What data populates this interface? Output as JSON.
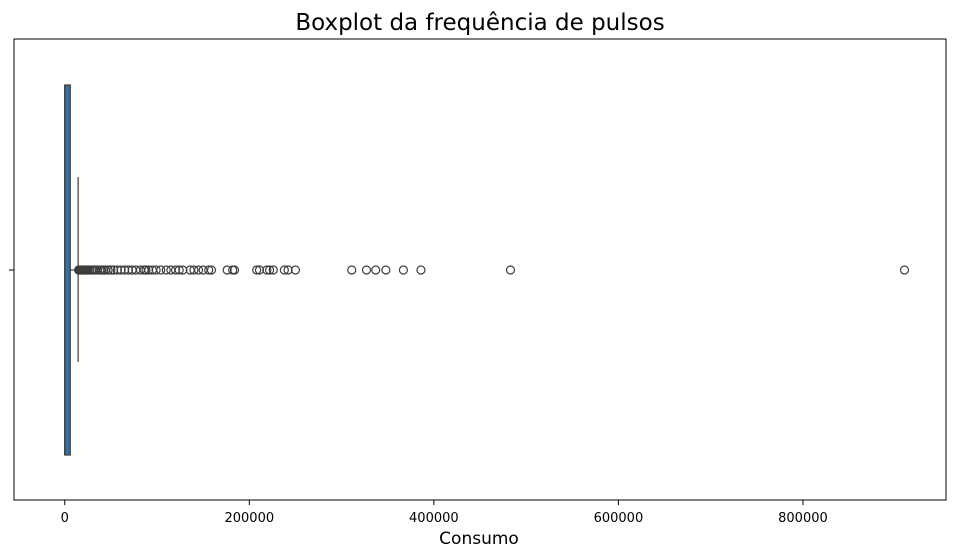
{
  "chart_data": {
    "type": "boxplot",
    "title": "Boxplot da frequência de pulsos",
    "xlabel": "Consumo",
    "ylabel": "",
    "xlim": [
      -55000,
      955000
    ],
    "xticks": [
      0,
      200000,
      400000,
      600000,
      800000
    ],
    "xtick_labels": [
      "0",
      "200000",
      "400000",
      "600000",
      "800000"
    ],
    "orientation": "horizontal",
    "box_color": "#3274a1",
    "line_color": "#3d3d3d",
    "grid": false,
    "legend": "none",
    "box": {
      "min": 0,
      "q1": 0,
      "median": 0,
      "q3": 6000,
      "whisker_low": 0,
      "whisker_high": 14500
    },
    "outliers": [
      15000,
      16000,
      17000,
      18000,
      19000,
      20000,
      21000,
      22000,
      23000,
      24000,
      25000,
      27000,
      29000,
      31000,
      33000,
      35000,
      38000,
      40000,
      42000,
      44000,
      47000,
      50000,
      53000,
      57000,
      61000,
      65000,
      69000,
      73000,
      77000,
      82000,
      86000,
      88000,
      91000,
      95000,
      99000,
      104000,
      110000,
      115000,
      120000,
      124000,
      128000,
      136000,
      140000,
      145000,
      150000,
      156000,
      159000,
      176000,
      182000,
      184000,
      208000,
      211000,
      219000,
      222000,
      226000,
      238000,
      242000,
      250000,
      311000,
      327000,
      337000,
      348000,
      367000,
      386000,
      483000,
      910000
    ]
  }
}
